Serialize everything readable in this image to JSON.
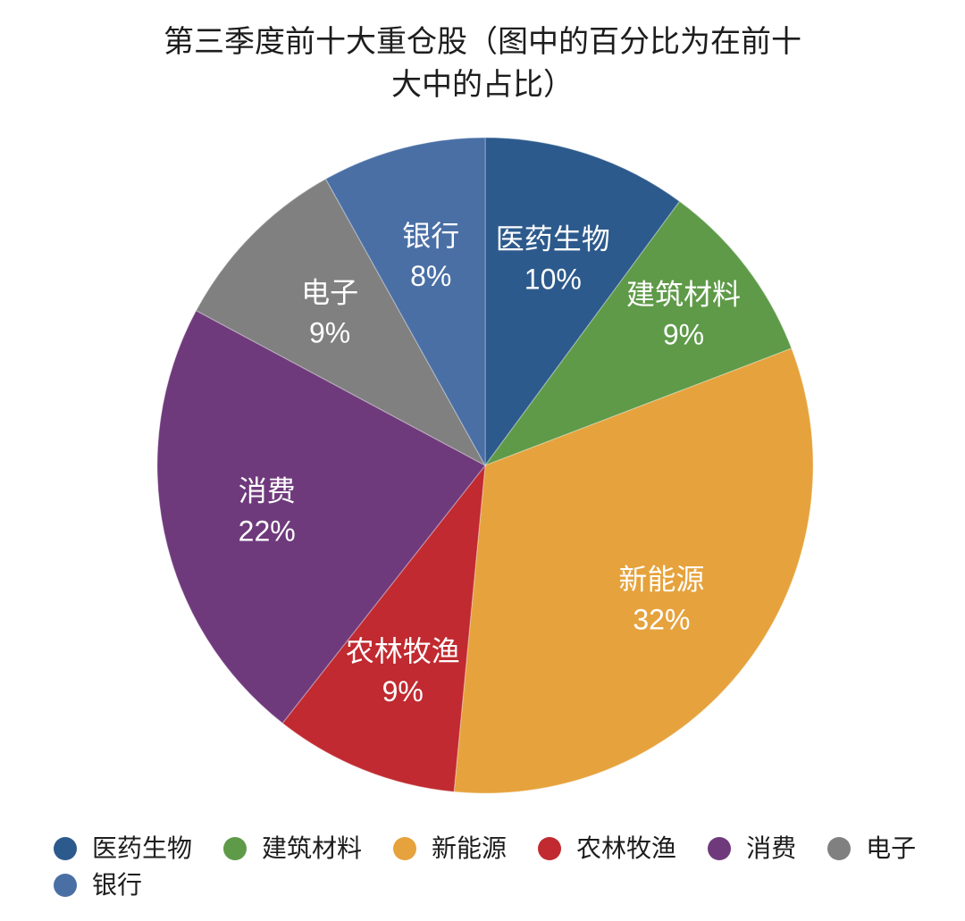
{
  "chart_data": {
    "type": "pie",
    "title": "第三季度前十大重仓股（图中的百分比为在前十大中的占比）",
    "categories": [
      "医药生物",
      "建筑材料",
      "新能源",
      "农林牧渔",
      "消费",
      "电子",
      "银行"
    ],
    "values": [
      10,
      9,
      32,
      9,
      22,
      9,
      8
    ],
    "data_labels": [
      "10%",
      "9%",
      "32%",
      "9%",
      "22%",
      "9%",
      "8%"
    ],
    "colors": [
      "#2D5A8C",
      "#5E9A48",
      "#E6A23C",
      "#C02A30",
      "#6F3A7C",
      "#808080",
      "#4A6FA5"
    ],
    "legend_position": "bottom"
  }
}
